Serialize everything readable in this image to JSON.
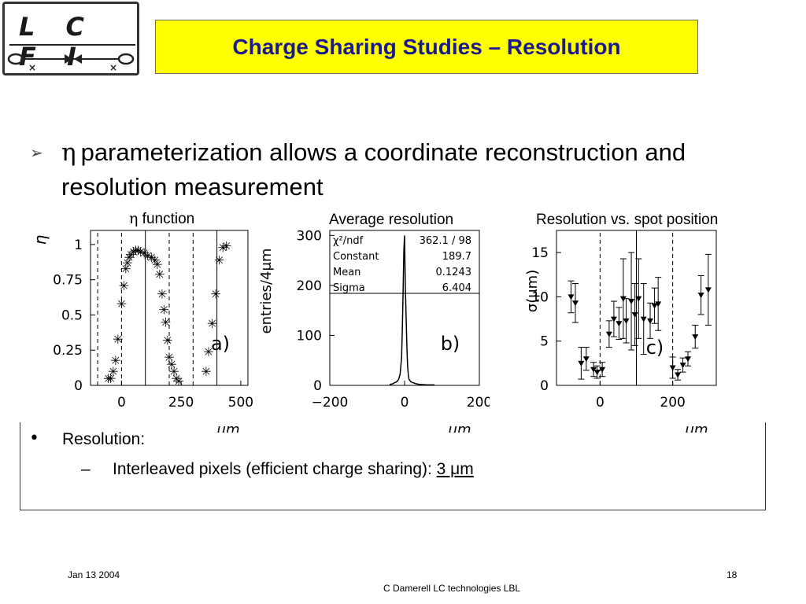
{
  "logo": {
    "letters": "L C F I"
  },
  "title": "Charge Sharing Studies – Resolution",
  "bullet": {
    "arrow": "➢",
    "symbol": "η",
    "text_line1": "parameterization allows a coordinate reconstruction and",
    "text_line2": "resolution measurement"
  },
  "captions": {
    "plot_a_symbol": "η",
    "plot_a": "function",
    "plot_b": "Average resolution",
    "plot_c": "Resolution vs. spot position"
  },
  "resolution_box": {
    "bullet": "•",
    "label": "Resolution:",
    "dash": "–",
    "sub_text": "Interleaved pixels (efficient charge sharing): ",
    "value": "3 μm"
  },
  "footer": {
    "date": "Jan 13 2004",
    "page": "18",
    "author": "C Damerell LC technologies LBL"
  },
  "colors": {
    "title_bg": "#ffff00",
    "title_text": "#1a1a8c"
  },
  "chart_data": [
    {
      "type": "scatter",
      "title": "η function",
      "panel_label": "a)",
      "xlabel": "μm",
      "ylabel": "η",
      "xlim": [
        -130,
        530
      ],
      "ylim": [
        0,
        1.1
      ],
      "x_ticks": [
        "0",
        "250",
        "500"
      ],
      "y_ticks": [
        "0",
        "0.25",
        "0.5",
        "0.75",
        "1"
      ],
      "y_tick_values": [
        0,
        0.25,
        0.5,
        0.75,
        1
      ],
      "dashed_lines_x": [
        -100,
        0,
        200,
        300
      ],
      "solid_lines_x": [
        100,
        400
      ],
      "points": [
        [
          -55,
          0.05
        ],
        [
          -45,
          0.05
        ],
        [
          -35,
          0.1
        ],
        [
          -25,
          0.18
        ],
        [
          -15,
          0.33
        ],
        [
          0,
          0.58
        ],
        [
          10,
          0.71
        ],
        [
          18,
          0.83
        ],
        [
          25,
          0.87
        ],
        [
          32,
          0.91
        ],
        [
          40,
          0.93
        ],
        [
          50,
          0.95
        ],
        [
          60,
          0.96
        ],
        [
          70,
          0.96
        ],
        [
          80,
          0.95
        ],
        [
          95,
          0.94
        ],
        [
          110,
          0.92
        ],
        [
          125,
          0.91
        ],
        [
          140,
          0.89
        ],
        [
          150,
          0.86
        ],
        [
          160,
          0.79
        ],
        [
          170,
          0.65
        ],
        [
          178,
          0.54
        ],
        [
          185,
          0.45
        ],
        [
          193,
          0.32
        ],
        [
          200,
          0.2
        ],
        [
          210,
          0.15
        ],
        [
          220,
          0.1
        ],
        [
          230,
          0.05
        ],
        [
          240,
          0.03
        ],
        [
          355,
          0.1
        ],
        [
          365,
          0.24
        ],
        [
          380,
          0.44
        ],
        [
          395,
          0.65
        ],
        [
          410,
          0.89
        ],
        [
          425,
          0.98
        ],
        [
          440,
          0.99
        ]
      ]
    },
    {
      "type": "line",
      "title": "Average resolution",
      "panel_label": "b)",
      "xlabel": "μm",
      "ylabel": "entries/4μm",
      "xlim": [
        -200,
        200
      ],
      "ylim": [
        0,
        310
      ],
      "x_ticks": [
        "-200",
        "0",
        "200"
      ],
      "y_ticks": [
        "0",
        "100",
        "200",
        "300"
      ],
      "y_tick_values": [
        0,
        100,
        200,
        300
      ],
      "stats": [
        {
          "name": "χ²/ndf",
          "value": "362.1  /  98"
        },
        {
          "name": "Constant",
          "value": "189.7"
        },
        {
          "name": "Mean",
          "value": "0.1243"
        },
        {
          "name": "Sigma",
          "value": "6.404"
        }
      ],
      "series": [
        {
          "x": [
            -40,
            -32,
            -28,
            -24,
            -20,
            -16,
            -12,
            -8,
            -6,
            -4,
            -2,
            0,
            2,
            4,
            6,
            8,
            10,
            12,
            16,
            20,
            24,
            28,
            32,
            40,
            60,
            80
          ],
          "y": [
            2,
            3,
            5,
            6,
            8,
            12,
            22,
            55,
            110,
            185,
            270,
            300,
            200,
            140,
            80,
            40,
            20,
            12,
            8,
            6,
            5,
            4,
            3,
            2,
            1,
            1
          ]
        }
      ]
    },
    {
      "type": "scatter",
      "title": "Resolution vs. spot position",
      "panel_label": "c)",
      "xlabel": "μm",
      "ylabel": "σ(μm)",
      "xlim": [
        -120,
        320
      ],
      "ylim": [
        0,
        17.5
      ],
      "x_ticks": [
        "0",
        "200"
      ],
      "y_ticks": [
        "0",
        "5",
        "10",
        "15"
      ],
      "y_tick_values": [
        0,
        5,
        10,
        15
      ],
      "dashed_lines_x": [
        0,
        200
      ],
      "solid_lines_x": [
        100
      ],
      "points": [
        {
          "x": -80,
          "y": 10.0,
          "err": 1.8
        },
        {
          "x": -68,
          "y": 9.3,
          "err": 2.2
        },
        {
          "x": -52,
          "y": 2.5,
          "err": 1.8
        },
        {
          "x": -38,
          "y": 3.0,
          "err": 1.3
        },
        {
          "x": -18,
          "y": 1.8,
          "err": 0.8
        },
        {
          "x": -8,
          "y": 1.5,
          "err": 0.7
        },
        {
          "x": 6,
          "y": 1.8,
          "err": 0.8
        },
        {
          "x": 25,
          "y": 5.8,
          "err": 1.5
        },
        {
          "x": 38,
          "y": 7.5,
          "err": 2.0
        },
        {
          "x": 52,
          "y": 7.0,
          "err": 1.8
        },
        {
          "x": 64,
          "y": 9.8,
          "err": 4.5
        },
        {
          "x": 72,
          "y": 7.3,
          "err": 2.5
        },
        {
          "x": 86,
          "y": 9.5,
          "err": 5.5
        },
        {
          "x": 96,
          "y": 8.0,
          "err": 3.5
        },
        {
          "x": 106,
          "y": 9.8,
          "err": 4.5
        },
        {
          "x": 120,
          "y": 7.5,
          "err": 4.0
        },
        {
          "x": 138,
          "y": 7.3,
          "err": 2.0
        },
        {
          "x": 150,
          "y": 9.0,
          "err": 2.0
        },
        {
          "x": 160,
          "y": 9.2,
          "err": 3.0
        },
        {
          "x": 200,
          "y": 2.0,
          "err": 1.2
        },
        {
          "x": 214,
          "y": 1.2,
          "err": 0.6
        },
        {
          "x": 228,
          "y": 2.3,
          "err": 0.8
        },
        {
          "x": 242,
          "y": 3.0,
          "err": 0.8
        },
        {
          "x": 262,
          "y": 5.5,
          "err": 1.3
        },
        {
          "x": 278,
          "y": 10.2,
          "err": 2.2
        },
        {
          "x": 298,
          "y": 10.8,
          "err": 4.0
        }
      ]
    }
  ]
}
